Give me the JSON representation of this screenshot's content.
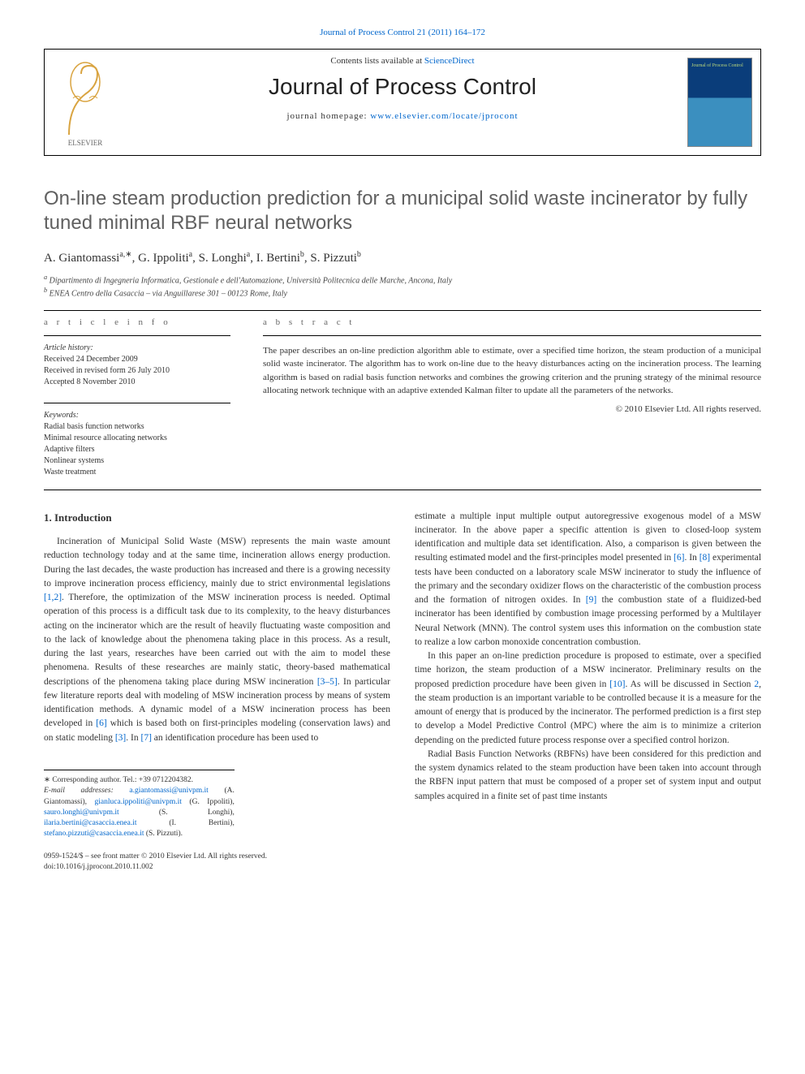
{
  "page": {
    "top_link_pre": "Journal of Process Control 21 (2011) 164–172",
    "contents_line_pre": "Contents lists available at ",
    "contents_line_link": "ScienceDirect",
    "journal_name": "Journal of Process Control",
    "homepage_pre": "journal homepage: ",
    "homepage_url": "www.elsevier.com/locate/jprocont",
    "cover_text": "Journal of\nProcess Control"
  },
  "article": {
    "title": "On-line steam production prediction for a municipal solid waste incinerator by fully tuned minimal RBF neural networks",
    "authors_html": "A. Giantomassi|a,∗|, G. Ippoliti|a|, S. Longhi|a|, I. Bertini|b|, S. Pizzuti|b|",
    "affiliations": [
      "a Dipartimento di Ingegneria Informatica, Gestionale e dell'Automazione, Università Politecnica delle Marche, Ancona, Italy",
      "b ENEA Centro della Casaccia – via Anguillarese 301 – 00123 Rome, Italy"
    ]
  },
  "info": {
    "article_info_label": "a r t i c l e   i n f o",
    "abstract_label": "a b s t r a c t",
    "history_label": "Article history:",
    "history": [
      "Received 24 December 2009",
      "Received in revised form 26 July 2010",
      "Accepted 8 November 2010"
    ],
    "keywords_label": "Keywords:",
    "keywords": [
      "Radial basis function networks",
      "Minimal resource allocating networks",
      "Adaptive filters",
      "Nonlinear systems",
      "Waste treatment"
    ],
    "abstract_text": "The paper describes an on-line prediction algorithm able to estimate, over a specified time horizon, the steam production of a municipal solid waste incinerator. The algorithm has to work on-line due to the heavy disturbances acting on the incineration process. The learning algorithm is based on radial basis function networks and combines the growing criterion and the pruning strategy of the minimal resource allocating network technique with an adaptive extended Kalman filter to update all the parameters of the networks.",
    "copyright": "© 2010 Elsevier Ltd. All rights reserved."
  },
  "body": {
    "section1_heading": "1. Introduction",
    "col1_p1": "Incineration of Municipal Solid Waste (MSW) represents the main waste amount reduction technology today and at the same time, incineration allows energy production. During the last decades, the waste production has increased and there is a growing necessity to improve incineration process efficiency, mainly due to strict environmental legislations [1,2]. Therefore, the optimization of the MSW incineration process is needed. Optimal operation of this process is a difficult task due to its complexity, to the heavy disturbances acting on the incinerator which are the result of heavily fluctuating waste composition and to the lack of knowledge about the phenomena taking place in this process. As a result, during the last years, researches have been carried out with the aim to model these phenomena. Results of these researches are mainly static, theory-based mathematical descriptions of the phenomena taking place during MSW incineration [3–5]. In particular few literature reports deal with modeling of MSW incineration process by means of system identification methods. A dynamic model of a MSW incineration process has been developed in [6] which is based both on first-principles modeling (conservation laws) and on static modeling [3]. In [7] an identification procedure has been used to",
    "col2_p1": "estimate a multiple input multiple output autoregressive exogenous model of a MSW incinerator. In the above paper a specific attention is given to closed-loop system identification and multiple data set identification. Also, a comparison is given between the resulting estimated model and the first-principles model presented in [6]. In [8] experimental tests have been conducted on a laboratory scale MSW incinerator to study the influence of the primary and the secondary oxidizer flows on the characteristic of the combustion process and the formation of nitrogen oxides. In [9] the combustion state of a fluidized-bed incinerator has been identified by combustion image processing performed by a Multilayer Neural Network (MNN). The control system uses this information on the combustion state to realize a low carbon monoxide concentration combustion.",
    "col2_p2": "In this paper an on-line prediction procedure is proposed to estimate, over a specified time horizon, the steam production of a MSW incinerator. Preliminary results on the proposed prediction procedure have been given in [10]. As will be discussed in Section 2, the steam production is an important variable to be controlled because it is a measure for the amount of energy that is produced by the incinerator. The performed prediction is a first step to develop a Model Predictive Control (MPC) where the aim is to minimize a criterion depending on the predicted future process response over a specified control horizon.",
    "col2_p3": "Radial Basis Function Networks (RBFNs) have been considered for this prediction and the system dynamics related to the steam production have been taken into account through the RBFN input pattern that must be composed of a proper set of system input and output samples acquired in a finite set of past time instants"
  },
  "footnotes": {
    "corr": "∗ Corresponding author. Tel.: +39 0712204382.",
    "email_label": "E-mail addresses:",
    "emails": [
      {
        "addr": "a.giantomassi@univpm.it",
        "who": "(A. Giantomassi),"
      },
      {
        "addr": "gianluca.ippoliti@univpm.it",
        "who": "(G. Ippoliti),"
      },
      {
        "addr": "sauro.longhi@univpm.it",
        "who": "(S. Longhi),"
      },
      {
        "addr": "ilaria.bertini@casaccia.enea.it",
        "who": "(I. Bertini),"
      },
      {
        "addr": "stefano.pizzuti@casaccia.enea.it",
        "who": "(S. Pizzuti)."
      }
    ]
  },
  "bottom": {
    "line1": "0959-1524/$ – see front matter © 2010 Elsevier Ltd. All rights reserved.",
    "line2": "doi:10.1016/j.jprocont.2010.11.002"
  },
  "colors": {
    "link": "#0066cc",
    "title_gray": "#606060",
    "text": "#333333",
    "cover_top": "#0a3d7a",
    "cover_bottom": "#3b8fbf",
    "cover_text": "#b8d67c"
  },
  "typography": {
    "body_pt": 11.5,
    "title_pt": 24,
    "journal_pt": 28,
    "abstract_pt": 11,
    "footnote_pt": 9.5
  }
}
